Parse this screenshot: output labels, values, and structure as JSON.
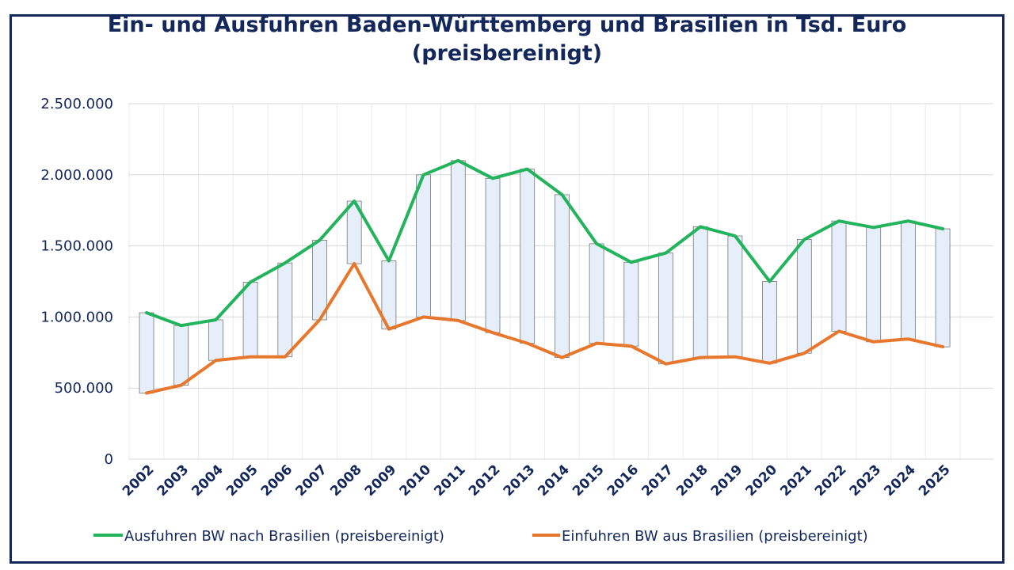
{
  "chart_data": {
    "type": "line",
    "title_line1": "Ein- und Ausfuhren Baden-Württemberg und Brasilien in Tsd. Euro",
    "title_line2": "(preisbereinigt)",
    "x": [
      "2002",
      "2003",
      "2004",
      "2005",
      "2006",
      "2007",
      "2008",
      "2009",
      "2010",
      "2011",
      "2012",
      "2013",
      "2014",
      "2015",
      "2016",
      "2017",
      "2018",
      "2019",
      "2020",
      "2021",
      "2022",
      "2023",
      "2024",
      "2025"
    ],
    "series": [
      {
        "name": "Ausfuhren BW nach Brasilien (preisbereinigt)",
        "color": "#22b35c",
        "values": [
          1030000,
          940000,
          980000,
          1245000,
          1380000,
          1540000,
          1815000,
          1395000,
          2000000,
          2100000,
          1975000,
          2040000,
          1860000,
          1515000,
          1385000,
          1450000,
          1635000,
          1570000,
          1250000,
          1545000,
          1675000,
          1630000,
          1675000,
          1620000
        ]
      },
      {
        "name": "Einfuhren BW aus Brasilien (preisbereinigt)",
        "color": "#e8772e",
        "values": [
          465000,
          520000,
          695000,
          720000,
          720000,
          980000,
          1375000,
          915000,
          1000000,
          975000,
          890000,
          815000,
          715000,
          815000,
          795000,
          670000,
          715000,
          720000,
          675000,
          745000,
          900000,
          825000,
          845000,
          790000
        ]
      }
    ],
    "y_ticks": [
      "0",
      "500.000",
      "1.000.000",
      "1.500.000",
      "2.000.000",
      "2.500.000"
    ],
    "y_tick_values": [
      0,
      500000,
      1000000,
      1500000,
      2000000,
      2500000
    ],
    "ylim": [
      0,
      2500000
    ],
    "bar_fill": "#e6eff9",
    "bar_stroke": "#777777",
    "grid": true,
    "legend_position": "bottom"
  }
}
